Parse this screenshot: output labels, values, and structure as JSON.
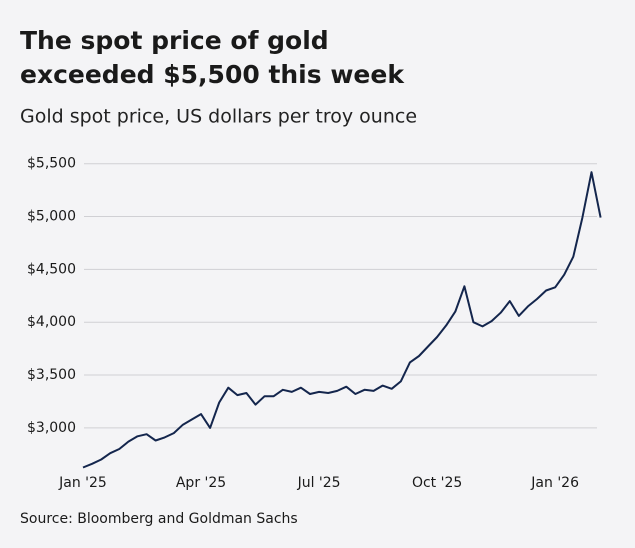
{
  "chart_data": {
    "type": "line",
    "title": [
      "The spot price of gold",
      "exceeded $5,500 this week"
    ],
    "subtitle": "Gold spot price, US dollars per troy ounce",
    "source": "Source: Bloomberg and Goldman Sachs",
    "categories": [
      "Jan '25",
      null,
      null,
      null,
      null,
      null,
      null,
      null,
      null,
      null,
      null,
      null,
      null,
      "Apr '25",
      null,
      null,
      null,
      null,
      null,
      null,
      null,
      null,
      null,
      null,
      null,
      null,
      "Jul '25",
      null,
      null,
      null,
      null,
      null,
      null,
      null,
      null,
      null,
      null,
      null,
      null,
      "Oct '25",
      null,
      null,
      null,
      null,
      null,
      null,
      null,
      null,
      null,
      null,
      null,
      null,
      "Jan '26",
      null,
      null,
      null,
      null,
      null
    ],
    "series": [
      {
        "name": "Gold spot price",
        "color": "#14264d",
        "values": [
          2625,
          2660,
          2700,
          2760,
          2800,
          2870,
          2920,
          2940,
          2880,
          2910,
          2950,
          3030,
          3080,
          3130,
          3000,
          3240,
          3380,
          3310,
          3330,
          3220,
          3300,
          3300,
          3360,
          3340,
          3380,
          3320,
          3340,
          3330,
          3350,
          3390,
          3320,
          3360,
          3350,
          3400,
          3370,
          3440,
          3620,
          3680,
          3770,
          3860,
          3970,
          4100,
          4340,
          4000,
          3960,
          4010,
          4090,
          4200,
          4060,
          4150,
          4220,
          4300,
          4330,
          4450,
          4620,
          4990,
          5420,
          4990
        ]
      }
    ],
    "ylim": [
      2620,
      5630
    ],
    "yticks": [
      {
        "value": 3000,
        "label": "$3,000"
      },
      {
        "value": 3500,
        "label": "$3,500"
      },
      {
        "value": 4000,
        "label": "$4,000"
      },
      {
        "value": 4500,
        "label": "$4,500"
      },
      {
        "value": 5000,
        "label": "$5,000"
      },
      {
        "value": 5500,
        "label": "$5,500"
      }
    ],
    "grid": true
  }
}
